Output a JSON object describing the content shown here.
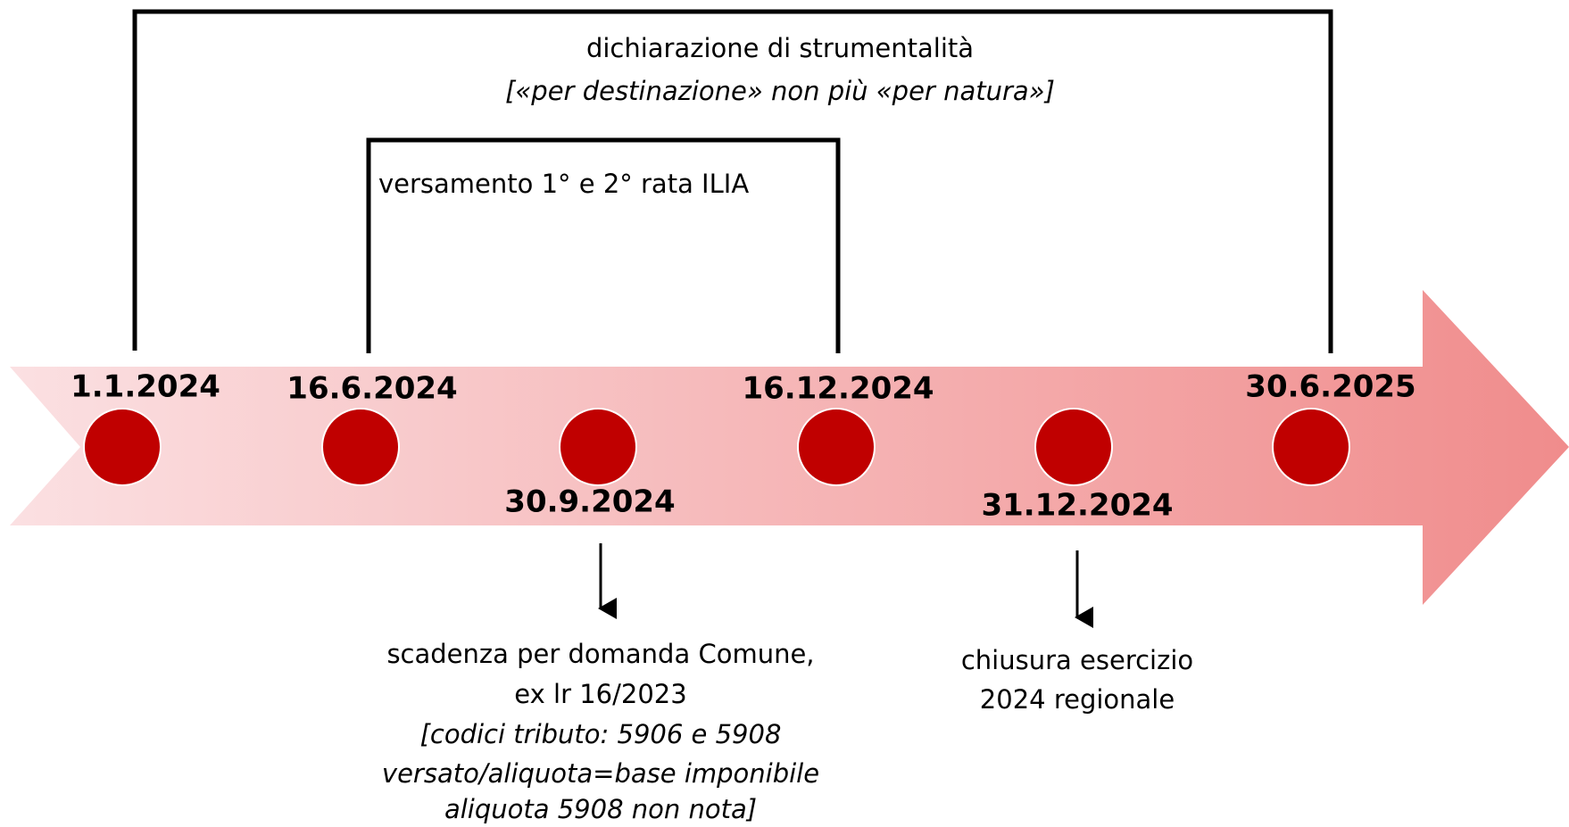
{
  "outer_bracket": {
    "label": "dichiarazione di strumentalità",
    "sublabel": "[«per destinazione» non più «per natura»]"
  },
  "inner_bracket": {
    "label": "versamento 1° e 2° rata ILIA"
  },
  "milestones": [
    {
      "date": "1.1.2024"
    },
    {
      "date": "16.6.2024"
    },
    {
      "date": "30.9.2024"
    },
    {
      "date": "16.12.2024"
    },
    {
      "date": "31.12.2024"
    },
    {
      "date": "30.6.2025"
    }
  ],
  "notes": [
    {
      "lines": [
        "scadenza per domanda Comune,",
        "ex lr 16/2023",
        "[codici tributo: 5906 e 5908",
        "versato/aliquota=base imponibile",
        "aliquota 5908 non nota]"
      ]
    },
    {
      "lines": [
        "chiusura esercizio",
        "2024 regionale"
      ]
    }
  ]
}
